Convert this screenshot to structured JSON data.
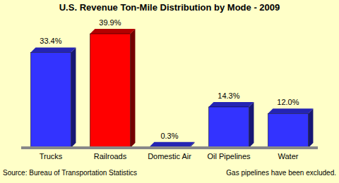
{
  "chart_data": {
    "type": "bar",
    "title": "U.S. Revenue Ton-Mile Distribution by Mode - 2009",
    "categories": [
      "Trucks",
      "Railroads",
      "Domestic Air",
      "Oil Pipelines",
      "Water"
    ],
    "values": [
      33.4,
      39.9,
      0.3,
      14.3,
      12.0
    ],
    "value_labels": [
      "33.4%",
      "39.9%",
      "0.3%",
      "14.3%",
      "12.0%"
    ],
    "colors": [
      "#3333ff",
      "#ff0000",
      "#3333ff",
      "#3333ff",
      "#3333ff"
    ],
    "data_labels": true,
    "tick_labels": "x",
    "grid": false,
    "annotations": [
      "Source:  Bureau of Transportation Statistics",
      "Gas pipelines have been excluded."
    ]
  }
}
